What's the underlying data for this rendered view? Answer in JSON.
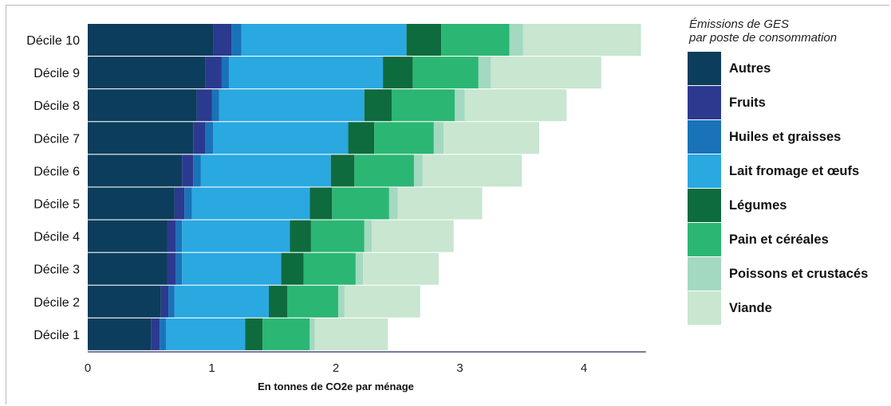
{
  "chart_data": {
    "type": "bar",
    "orientation": "horizontal",
    "stacked": true,
    "categories": [
      "Décile 10",
      "Décile 9",
      "Décile 8",
      "Décile 7",
      "Décile 6",
      "Décile 5",
      "Décile 4",
      "Décile 3",
      "Décile 2",
      "Décile 1"
    ],
    "series": [
      {
        "name": "Autres",
        "color": "#0c3d5c",
        "values": [
          1.01,
          0.95,
          0.88,
          0.85,
          0.76,
          0.7,
          0.64,
          0.64,
          0.59,
          0.51
        ]
      },
      {
        "name": "Fruits",
        "color": "#2b3a8f",
        "values": [
          0.15,
          0.13,
          0.12,
          0.1,
          0.09,
          0.08,
          0.07,
          0.07,
          0.06,
          0.07
        ]
      },
      {
        "name": "Huiles et graisses",
        "color": "#1a72b8",
        "values": [
          0.08,
          0.06,
          0.06,
          0.06,
          0.06,
          0.06,
          0.05,
          0.05,
          0.05,
          0.05
        ]
      },
      {
        "name": "Lait fromage et œufs",
        "color": "#2aa8e0",
        "values": [
          1.33,
          1.24,
          1.17,
          1.09,
          1.05,
          0.95,
          0.87,
          0.8,
          0.76,
          0.64
        ]
      },
      {
        "name": "Légumes",
        "color": "#0e6b3e",
        "values": [
          0.28,
          0.24,
          0.22,
          0.21,
          0.19,
          0.18,
          0.17,
          0.18,
          0.15,
          0.14
        ]
      },
      {
        "name": "Pain et céréales",
        "color": "#2bb673",
        "values": [
          0.55,
          0.53,
          0.51,
          0.48,
          0.48,
          0.46,
          0.43,
          0.42,
          0.41,
          0.38
        ]
      },
      {
        "name": "Poissons et crustacés",
        "color": "#a3d9c0",
        "values": [
          0.11,
          0.1,
          0.08,
          0.08,
          0.07,
          0.07,
          0.06,
          0.06,
          0.05,
          0.04
        ]
      },
      {
        "name": "Viande",
        "color": "#c8e6d0",
        "values": [
          0.95,
          0.89,
          0.82,
          0.77,
          0.8,
          0.68,
          0.66,
          0.61,
          0.61,
          0.59
        ]
      }
    ],
    "xlabel": "En tonnes de CO2e par ménage",
    "ylabel": "",
    "xlim": [
      0,
      4.5
    ],
    "xticks": [
      "0",
      "1",
      "2",
      "3",
      "4"
    ],
    "legend_title": "Émissions de GES par poste de consommation",
    "legend_title_lines": [
      "Émissions de GES",
      "par poste de consommation"
    ],
    "legend_placement": "right",
    "grid": false
  }
}
